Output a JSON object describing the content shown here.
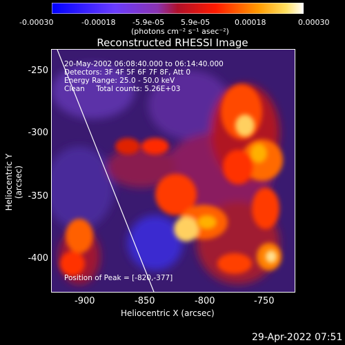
{
  "colorbar": {
    "ticks": [
      "-0.00030",
      "-0.00018",
      "-5.9e-05",
      "5.9e-05",
      "0.00018",
      "0.00030"
    ],
    "units": "(photons cm⁻² s⁻¹ asec⁻²)",
    "colors": [
      "#0000ff",
      "#5a3cff",
      "#9b3cc8",
      "#c0193c",
      "#ff0000",
      "#ff8c00",
      "#ffffff"
    ]
  },
  "plot": {
    "title": "Reconstructed RHESSI Image",
    "info": {
      "line1": "20-May-2002 06:08:40.000 to 06:14:40.000",
      "line2": "Detectors: 3F 4F 5F 6F 7F 8F, Att 0",
      "line3": "Energy Range: 25.0 - 50.0 keV",
      "line4": "Clean     Total counts: 5.26E+03"
    },
    "peak_label": "Position of Peak = [-820,-377]",
    "xlabel": "Heliocentric X (arcsec)",
    "ylabel": "Heliocentric Y (arcsec)",
    "xticks": [
      "-900",
      "-850",
      "-800",
      "-750"
    ],
    "yticks": [
      "-250",
      "-300",
      "-350",
      "-400"
    ]
  },
  "footer": {
    "timestamp": "29-Apr-2022 07:51"
  }
}
